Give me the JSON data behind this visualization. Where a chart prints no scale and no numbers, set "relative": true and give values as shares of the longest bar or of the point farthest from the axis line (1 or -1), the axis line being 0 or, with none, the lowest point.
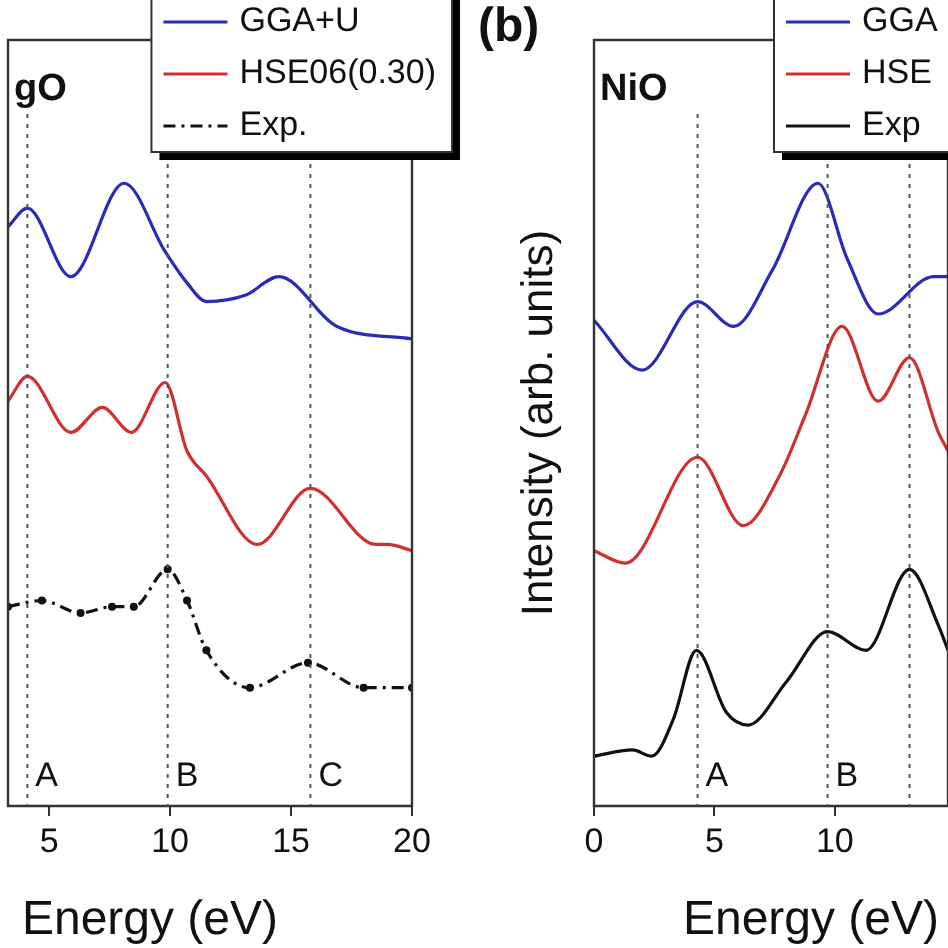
{
  "chart_data": [
    {
      "type": "line",
      "title": "gO",
      "xlabel": "Energy (eV)",
      "relative": true,
      "xlim": [
        3.3,
        20
      ],
      "xticks": [
        5,
        10,
        15,
        20
      ],
      "legend": "top right",
      "grid": false,
      "series": [
        {
          "name": "GGA+U",
          "color": "#2b2bb8",
          "x": [
            3.3,
            4.1,
            5.9,
            8.1,
            9.8,
            10.7,
            11.5,
            13.1,
            14.5,
            16.9,
            20
          ],
          "values": [
            0.93,
            0.96,
            0.85,
            1,
            0.89,
            0.84,
            0.81,
            0.82,
            0.85,
            0.77,
            0.75
          ]
        },
        {
          "name": "HSE06(0.30)",
          "color": "#d03030",
          "x": [
            3.3,
            4.1,
            5.9,
            7.2,
            8.4,
            9.8,
            10.7,
            11.5,
            13.6,
            15.8,
            18.5,
            19.0,
            20
          ],
          "values": [
            0.65,
            0.69,
            0.6,
            0.64,
            0.6,
            0.68,
            0.57,
            0.53,
            0.42,
            0.51,
            0.42,
            0.42,
            0.41
          ]
        },
        {
          "name": "Exp.",
          "color": "#111111",
          "marker": "circle",
          "line_style": "dashed",
          "x": [
            3.3,
            4.7,
            6.3,
            7.6,
            8.5,
            9.9,
            10.7,
            11.5,
            13.3,
            15.7,
            18.0,
            20
          ],
          "values": [
            0.32,
            0.33,
            0.31,
            0.32,
            0.32,
            0.38,
            0.33,
            0.25,
            0.19,
            0.23,
            0.19,
            0.19
          ]
        }
      ],
      "ref_lines": [
        {
          "axis": "x",
          "value": 4.1,
          "label": "A",
          "line_style": "dotted",
          "color": "#555555"
        },
        {
          "axis": "x",
          "value": 9.9,
          "label": "B",
          "line_style": "dotted",
          "color": "#555555"
        },
        {
          "axis": "x",
          "value": 15.8,
          "label": "C",
          "line_style": "dotted",
          "color": "#555555"
        }
      ]
    },
    {
      "type": "line",
      "title": "NiO",
      "xlabel": "Energy (eV)",
      "ylabel": "Intensity (arb. units)",
      "annotations": [
        "(b)"
      ],
      "relative": true,
      "xlim": [
        0,
        14.7
      ],
      "xticks": [
        0,
        5,
        10
      ],
      "legend": "top right",
      "grid": false,
      "series": [
        {
          "name": "GGA",
          "color": "#2b2bb8",
          "x": [
            0,
            2.0,
            4.3,
            5.8,
            7.4,
            9.3,
            10.5,
            11.8,
            14.1,
            14.7
          ],
          "values": [
            0.78,
            0.7,
            0.81,
            0.77,
            0.86,
            1,
            0.88,
            0.79,
            0.85,
            0.85
          ]
        },
        {
          "name": "HSE",
          "color": "#d03030",
          "x": [
            0,
            1.3,
            4.3,
            6.2,
            7.7,
            8.8,
            10.3,
            11.8,
            13.1,
            14.3,
            14.7
          ],
          "values": [
            0.41,
            0.39,
            0.56,
            0.45,
            0.53,
            0.63,
            0.77,
            0.65,
            0.72,
            0.6,
            0.57
          ]
        },
        {
          "name": "Exp",
          "color": "#111111",
          "x": [
            0,
            1.6,
            2.4,
            3.3,
            4.25,
            5.5,
            6.4,
            8.0,
            9.7,
            11.3,
            13.1,
            14.3,
            14.7
          ],
          "values": [
            0.08,
            0.09,
            0.08,
            0.14,
            0.25,
            0.15,
            0.13,
            0.2,
            0.28,
            0.25,
            0.38,
            0.29,
            0.25
          ]
        }
      ],
      "ref_lines": [
        {
          "axis": "x",
          "value": 4.3,
          "label": "A",
          "line_style": "dotted",
          "color": "#555555"
        },
        {
          "axis": "x",
          "value": 9.7,
          "label": "B",
          "line_style": "dotted",
          "color": "#555555"
        },
        {
          "axis": "x",
          "value": 13.1,
          "label": null,
          "line_style": "dotted",
          "color": "#555555"
        }
      ]
    }
  ]
}
